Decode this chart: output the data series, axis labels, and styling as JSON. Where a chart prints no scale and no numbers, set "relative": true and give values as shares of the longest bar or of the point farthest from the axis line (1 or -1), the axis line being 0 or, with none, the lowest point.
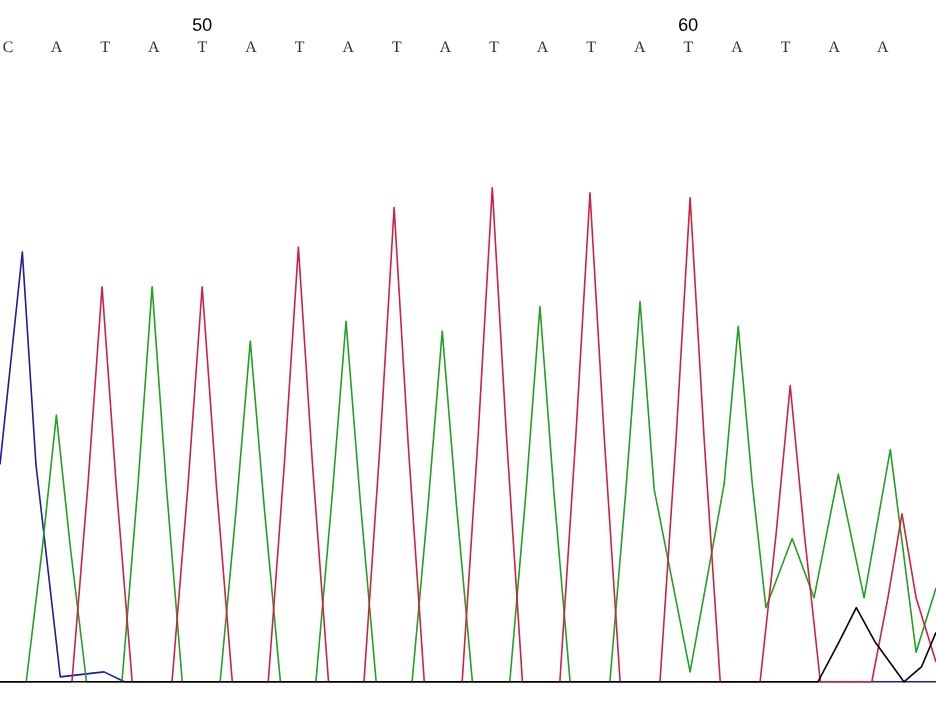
{
  "chart_data": {
    "type": "line",
    "relative": true,
    "xlim": [
      45.84,
      65.1
    ],
    "xticks": [
      50,
      60
    ],
    "annotations": [
      "C",
      "A",
      "T",
      "A",
      "T",
      "A",
      "T",
      "A",
      "T",
      "A",
      "T",
      "A",
      "T",
      "A",
      "T",
      "A",
      "T",
      "A",
      "A"
    ],
    "series": [
      {
        "color": "#1c1c9c",
        "x": [
          45.84,
          46.3,
          46.58,
          47.08,
          47.98,
          48.4,
          65.1
        ],
        "values": [
          0.44,
          0.87,
          0.44,
          0.01,
          0.02,
          0,
          0
        ]
      },
      {
        "color": "#22a022",
        "x": [
          45.84,
          46.38,
          46.71,
          47.0,
          47.29,
          47.62,
          48.35,
          48.68,
          48.97,
          49.26,
          49.59,
          50.37,
          50.7,
          50.99,
          51.28,
          51.61,
          52.34,
          52.67,
          52.96,
          53.25,
          53.58,
          54.32,
          54.65,
          54.94,
          55.23,
          55.56,
          56.33,
          56.66,
          56.95,
          57.24,
          57.57,
          58.39,
          58.72,
          59.01,
          59.3,
          60.04,
          60.74,
          61.03,
          61.32,
          61.6,
          62.14,
          62.59,
          63.09,
          63.62,
          64.16,
          64.69,
          65.1
        ],
        "values": [
          0,
          0,
          0.27,
          0.54,
          0.27,
          0,
          0,
          0.4,
          0.8,
          0.4,
          0,
          0,
          0.35,
          0.69,
          0.35,
          0,
          0,
          0.37,
          0.73,
          0.37,
          0,
          0,
          0.36,
          0.71,
          0.36,
          0,
          0,
          0.38,
          0.76,
          0.38,
          0,
          0,
          0.39,
          0.77,
          0.39,
          0.02,
          0.4,
          0.72,
          0.4,
          0.15,
          0.29,
          0.17,
          0.42,
          0.17,
          0.47,
          0.06,
          0.19
        ]
      },
      {
        "color": "#cc2244",
        "x": [
          45.84,
          47.32,
          47.65,
          47.94,
          48.23,
          48.56,
          49.38,
          49.71,
          50.0,
          50.29,
          50.62,
          51.36,
          51.69,
          51.98,
          52.27,
          52.6,
          53.33,
          53.66,
          53.95,
          54.24,
          54.57,
          55.35,
          55.68,
          55.97,
          56.26,
          56.59,
          57.36,
          57.69,
          57.98,
          58.27,
          58.6,
          59.42,
          59.75,
          60.04,
          60.33,
          60.66,
          61.48,
          61.81,
          62.1,
          62.39,
          62.72,
          63.78,
          64.11,
          64.4,
          64.69,
          65.1
        ],
        "values": [
          0,
          0,
          0.4,
          0.8,
          0.4,
          0,
          0,
          0.4,
          0.8,
          0.4,
          0,
          0,
          0.44,
          0.88,
          0.44,
          0,
          0,
          0.48,
          0.96,
          0.48,
          0,
          0,
          0.5,
          1.0,
          0.5,
          0,
          0,
          0.5,
          0.99,
          0.5,
          0,
          0,
          0.49,
          0.98,
          0.49,
          0,
          0,
          0.3,
          0.6,
          0.3,
          0,
          0,
          0.17,
          0.34,
          0.17,
          0.04
        ]
      },
      {
        "color": "#000000",
        "x": [
          45.84,
          62.67,
          63.1,
          63.46,
          63.85,
          64.44,
          64.8,
          65.1
        ],
        "values": [
          0,
          0,
          0.08,
          0.15,
          0.08,
          0,
          0.03,
          0.1
        ]
      }
    ]
  }
}
